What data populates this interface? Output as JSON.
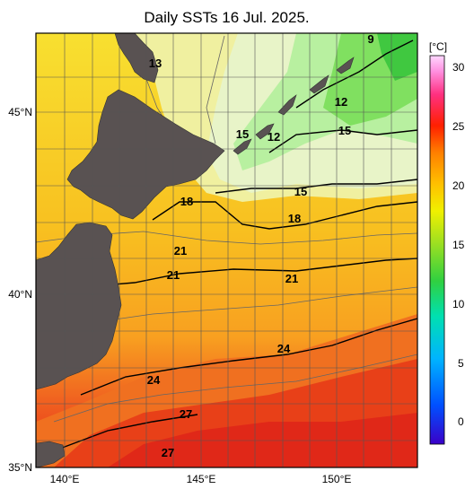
{
  "title": "Daily SSTs 16 Jul. 2025.",
  "map": {
    "lon_ticks": [
      "140°E",
      "145°E",
      "150°E"
    ],
    "lat_ticks": [
      "45°N",
      "40°N",
      "35°N"
    ]
  },
  "colorbar": {
    "unit": "[°C]",
    "ticks": [
      "30",
      "25",
      "20",
      "15",
      "10",
      "5",
      "0"
    ],
    "colors": [
      "#3a00c8",
      "#0050ff",
      "#00b4ff",
      "#00e0b0",
      "#30d040",
      "#a0e020",
      "#f0f000",
      "#ffc000",
      "#ff8000",
      "#ff2000",
      "#ff3080",
      "#ff90e0",
      "#ffd8ff"
    ]
  },
  "contour_labels": [
    "9",
    "12",
    "12",
    "13",
    "15",
    "15",
    "15",
    "18",
    "18",
    "21",
    "21",
    "21",
    "24",
    "24",
    "27",
    "27"
  ]
}
